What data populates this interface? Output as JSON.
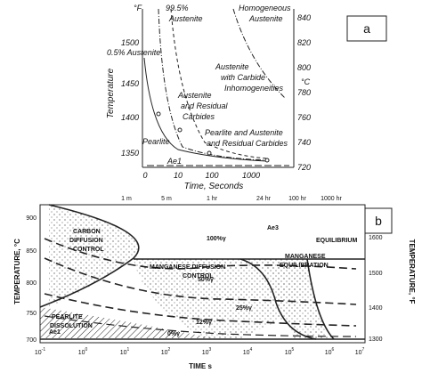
{
  "panel_a": {
    "label": "a",
    "left_unit": "°F",
    "right_unit": "°C",
    "axis_label": "Temperature",
    "x_axis_label": "Time, Seconds",
    "left_ticks": [
      "1500",
      "1450",
      "1400",
      "1350"
    ],
    "right_ticks": [
      "840",
      "820",
      "800",
      "780",
      "760",
      "740",
      "720"
    ],
    "x_ticks": [
      "0",
      "10",
      "100",
      "1000"
    ],
    "annotations": [
      "99.5%",
      "Austenite",
      "0.5% Austenite",
      "Homogeneous",
      "Austenite",
      "Austenite",
      "with Carbide",
      "Inhomogeneities",
      "Austenite",
      "and Residual",
      "Carbides",
      "Pearlite",
      "Pearlite and Austenite",
      "and Residual Carbides",
      "Ae1"
    ]
  },
  "panel_b": {
    "label": "b",
    "left_axis_label": "TEMPERATURE, °C",
    "right_axis_label": "TEMPERATURE, °F",
    "x_axis_label": "TIME s",
    "left_ticks": [
      "900",
      "850",
      "800",
      "750",
      "700"
    ],
    "right_ticks": [
      "1600",
      "1500",
      "1400",
      "1300"
    ],
    "x_ticks": [
      {
        "base": "10",
        "exp": "-1"
      },
      {
        "base": "10",
        "exp": "0"
      },
      {
        "base": "10",
        "exp": "1"
      },
      {
        "base": "10",
        "exp": "2"
      },
      {
        "base": "10",
        "exp": "3"
      },
      {
        "base": "10",
        "exp": "4"
      },
      {
        "base": "10",
        "exp": "5"
      },
      {
        "base": "10",
        "exp": "6"
      },
      {
        "base": "10",
        "exp": "7"
      }
    ],
    "top_ticks": [
      "1 m",
      "5 m",
      "1 hr",
      "24 hr",
      "100 hr",
      "1000 hr"
    ],
    "annotations": [
      "CARBON",
      "DIFFUSION",
      "CONTROL",
      "MANGANESE DIFFUSION",
      "CONTROL",
      "MANGANESE",
      "EQUILIBRATION",
      "EQUILIBRIUM",
      "100%γ",
      "Ae3",
      "50%γ",
      "25%γ",
      "12%γ",
      "0%γ",
      "PEARLITE",
      "DISSOLUTION",
      "Ae1"
    ]
  }
}
